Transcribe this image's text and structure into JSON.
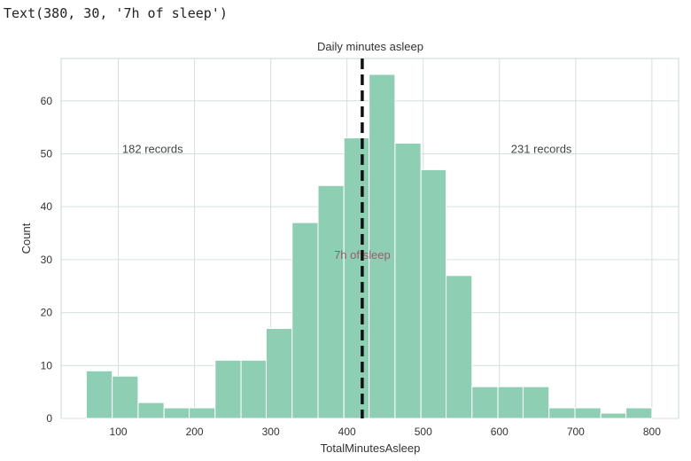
{
  "output_text": "Text(380, 30, '7h of sleep')",
  "chart_data": {
    "type": "bar",
    "title": "Daily minutes asleep",
    "xlabel": "TotalMinutesAsleep",
    "ylabel": "Count",
    "xlim": [
      25,
      835
    ],
    "ylim": [
      0,
      68
    ],
    "xticks": [
      100,
      200,
      300,
      400,
      500,
      600,
      700,
      800
    ],
    "yticks": [
      0,
      10,
      20,
      30,
      40,
      50,
      60
    ],
    "grid": true,
    "bar_color": "#8ecfb4",
    "bins": [
      {
        "x0": 58,
        "x1": 92,
        "count": 9
      },
      {
        "x0": 92,
        "x1": 126,
        "count": 8
      },
      {
        "x0": 126,
        "x1": 160,
        "count": 3
      },
      {
        "x0": 160,
        "x1": 193,
        "count": 2
      },
      {
        "x0": 193,
        "x1": 227,
        "count": 2
      },
      {
        "x0": 227,
        "x1": 261,
        "count": 11
      },
      {
        "x0": 261,
        "x1": 294,
        "count": 11
      },
      {
        "x0": 294,
        "x1": 328,
        "count": 17
      },
      {
        "x0": 328,
        "x1": 362,
        "count": 37
      },
      {
        "x0": 362,
        "x1": 396,
        "count": 44
      },
      {
        "x0": 396,
        "x1": 429,
        "count": 53
      },
      {
        "x0": 429,
        "x1": 463,
        "count": 65
      },
      {
        "x0": 463,
        "x1": 497,
        "count": 52
      },
      {
        "x0": 497,
        "x1": 530,
        "count": 47
      },
      {
        "x0": 530,
        "x1": 564,
        "count": 27
      },
      {
        "x0": 564,
        "x1": 598,
        "count": 6
      },
      {
        "x0": 598,
        "x1": 631,
        "count": 6
      },
      {
        "x0": 631,
        "x1": 665,
        "count": 6
      },
      {
        "x0": 665,
        "x1": 699,
        "count": 2
      },
      {
        "x0": 699,
        "x1": 733,
        "count": 2
      },
      {
        "x0": 733,
        "x1": 766,
        "count": 1
      },
      {
        "x0": 766,
        "x1": 800,
        "count": 2
      }
    ],
    "vline": {
      "x": 420,
      "style": "dashed",
      "color": "#111111"
    },
    "annotations": [
      {
        "text": "182 records",
        "x": 145,
        "y": 51
      },
      {
        "text": "231 records",
        "x": 655,
        "y": 51
      },
      {
        "text": "7h of sleep",
        "x": 420,
        "y": 31
      }
    ]
  }
}
